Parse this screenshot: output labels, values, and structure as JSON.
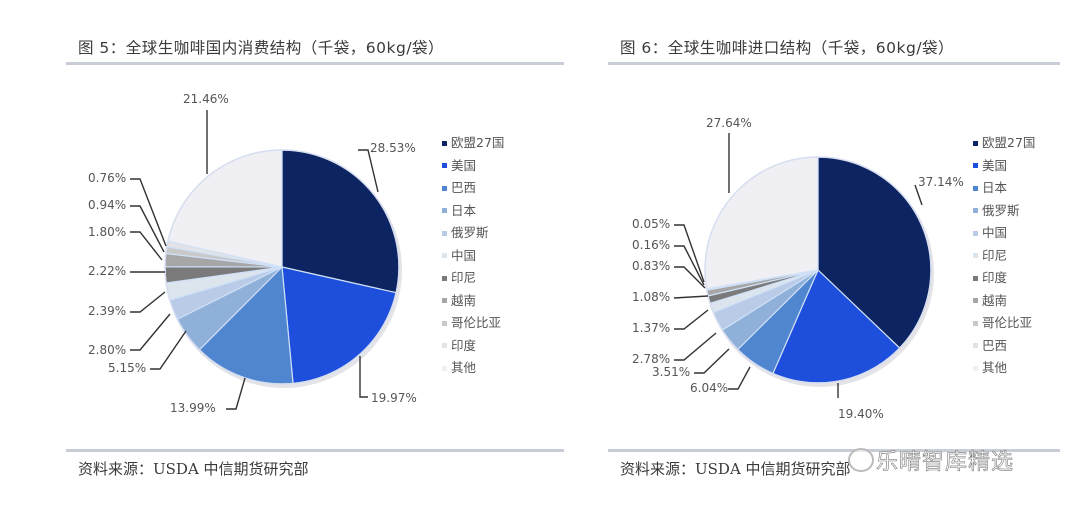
{
  "figure5": {
    "title": "图  5：全球生咖啡国内消费结构（千袋，60kg/袋）",
    "source": "资料来源：USDA  中信期货研究部"
  },
  "figure6": {
    "title": "图  6：全球生咖啡进口结构（千袋，60kg/袋）",
    "source": "资料来源：USDA  中信期货研究部"
  },
  "watermark": "乐晴智库精选",
  "chart_data": [
    {
      "type": "pie",
      "title": "图 5：全球生咖啡国内消费结构（千袋，60kg/袋）",
      "categories": [
        "欧盟27国",
        "美国",
        "巴西",
        "日本",
        "俄罗斯",
        "中国",
        "印尼",
        "越南",
        "哥伦比亚",
        "印度",
        "其他"
      ],
      "values": [
        28.53,
        19.97,
        13.99,
        5.15,
        2.8,
        2.39,
        2.22,
        1.8,
        0.94,
        0.76,
        21.46
      ],
      "labels": [
        "28.53%",
        "19.97%",
        "13.99%",
        "5.15%",
        "2.80%",
        "2.39%",
        "2.22%",
        "1.80%",
        "0.94%",
        "0.76%",
        "21.46%"
      ],
      "colors": [
        "#0c2461",
        "#1e4fdc",
        "#4f86cf",
        "#8fb0d8",
        "#b9cbe6",
        "#dce4ee",
        "#7a7a7a",
        "#a6a6a6",
        "#c9c9c9",
        "#e3e3e6",
        "#f0f0f4"
      ],
      "legend_position": "right",
      "source": "资料来源：USDA  中信期货研究部"
    },
    {
      "type": "pie",
      "title": "图 6：全球生咖啡进口结构（千袋，60kg/袋）",
      "categories": [
        "欧盟27国",
        "美国",
        "日本",
        "俄罗斯",
        "中国",
        "印尼",
        "印度",
        "越南",
        "哥伦比亚",
        "巴西",
        "其他"
      ],
      "values": [
        37.14,
        19.4,
        6.04,
        3.51,
        2.78,
        1.37,
        1.08,
        0.83,
        0.16,
        0.05,
        27.64
      ],
      "labels": [
        "37.14%",
        "19.40%",
        "6.04%",
        "3.51%",
        "2.78%",
        "1.37%",
        "1.08%",
        "0.83%",
        "0.16%",
        "0.05%",
        "27.64%"
      ],
      "colors": [
        "#0c2461",
        "#1e4fdc",
        "#4f86cf",
        "#8fb0d8",
        "#b9cbe6",
        "#dce4ee",
        "#7a7a7a",
        "#a6a6a6",
        "#c9c9c9",
        "#e3e3e6",
        "#f0f0f4"
      ],
      "legend_position": "right",
      "source": "资料来源：USDA  中信期货研究部"
    }
  ]
}
